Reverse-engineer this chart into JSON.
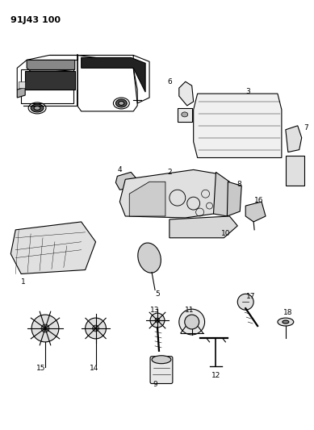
{
  "title": "91J43 100",
  "background_color": "#ffffff",
  "fig_width": 3.89,
  "fig_height": 5.33,
  "dpi": 100
}
